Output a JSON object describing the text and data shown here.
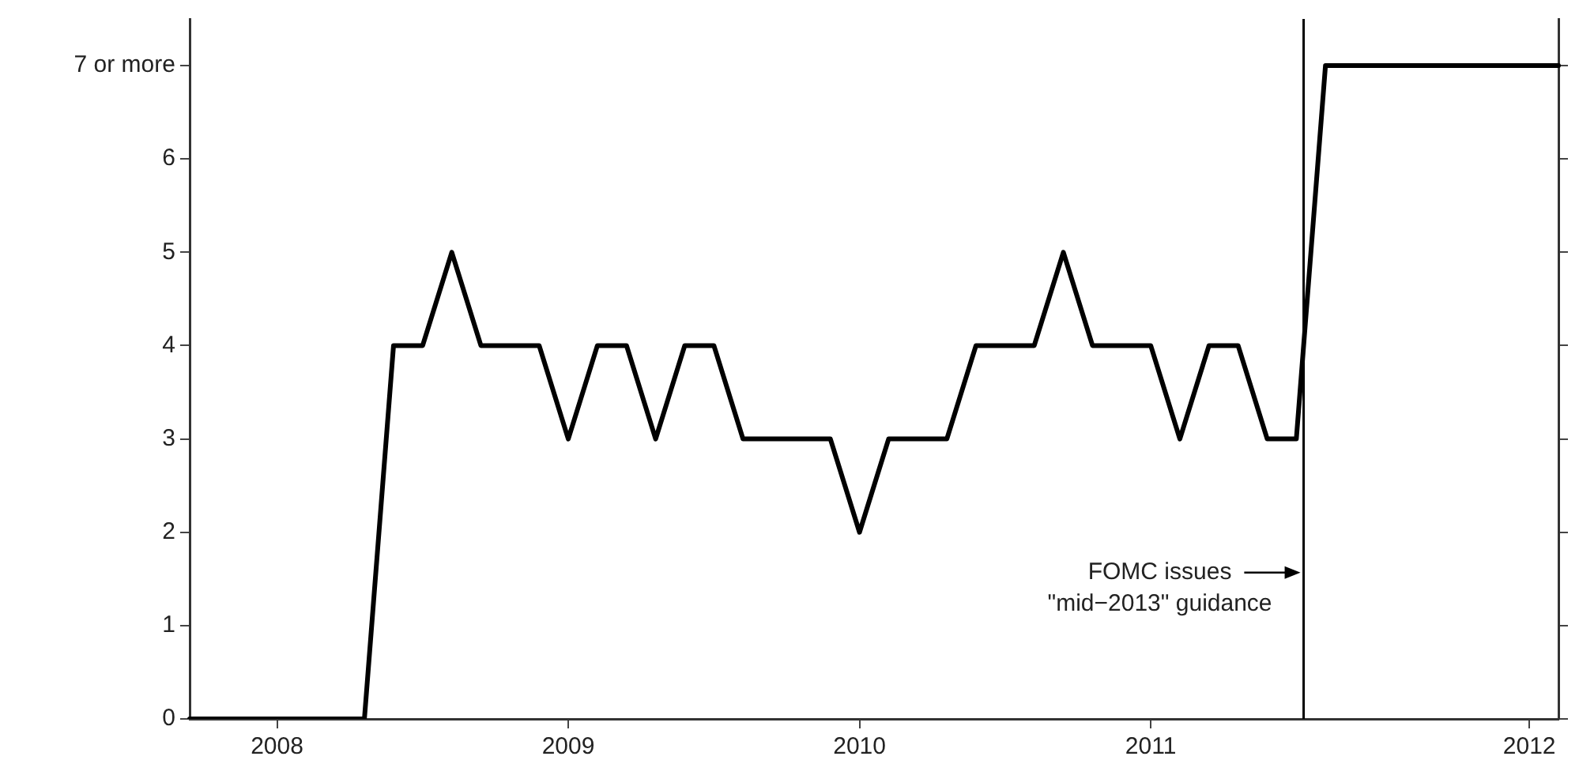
{
  "chart_data": {
    "type": "line",
    "ylim": [
      0,
      7.5
    ],
    "categories": [
      null,
      null,
      null,
      "2008",
      null,
      null,
      null,
      null,
      null,
      null,
      null,
      null,
      null,
      "2009",
      null,
      null,
      null,
      null,
      null,
      null,
      null,
      null,
      null,
      "2010",
      null,
      null,
      null,
      null,
      null,
      null,
      null,
      null,
      null,
      "2011",
      null,
      null,
      null,
      null,
      null,
      null,
      null,
      null,
      null,
      null,
      null,
      null,
      "2012",
      null
    ],
    "yticks": [
      0,
      1,
      2,
      3,
      4,
      5,
      6,
      {
        "value": 7,
        "label": "7 or more"
      }
    ],
    "grid": false,
    "legend": false,
    "marker": "none",
    "line_style": "solid",
    "series": [
      {
        "color": "#000000",
        "values": [
          0,
          0,
          0,
          0,
          0,
          0,
          0,
          4,
          4,
          5,
          4,
          4,
          4,
          3,
          4,
          4,
          3,
          4,
          4,
          3,
          3,
          3,
          3,
          2,
          3,
          3,
          3,
          4,
          4,
          4,
          5,
          4,
          4,
          4,
          3,
          4,
          4,
          3,
          3,
          7,
          7,
          7,
          7,
          7,
          7,
          7,
          7,
          7
        ]
      }
    ],
    "annotations": [
      "FOMC issues\n\"mid−2013\" guidance"
    ]
  }
}
